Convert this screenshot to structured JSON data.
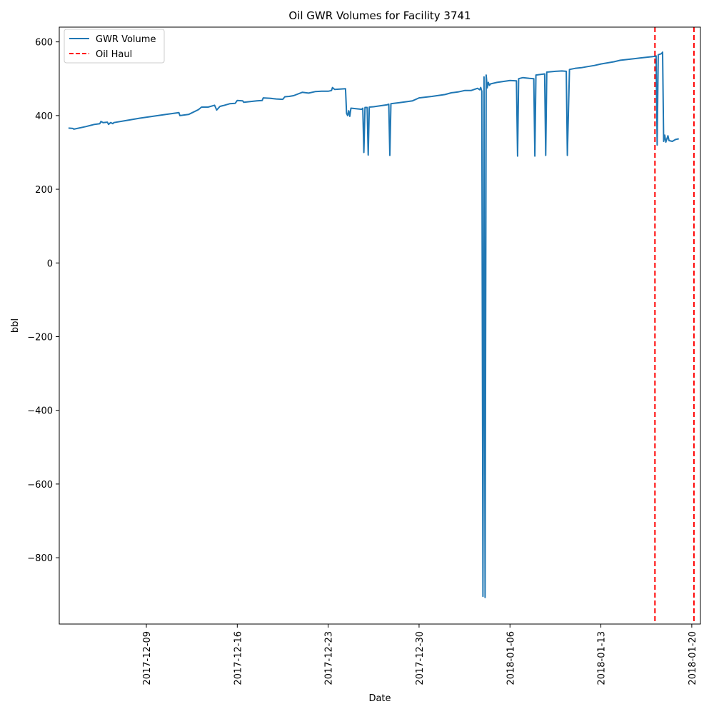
{
  "chart_data": {
    "type": "line",
    "title": "Oil GWR Volumes for Facility 3741",
    "xlabel": "Date",
    "ylabel": "bbl",
    "xlim": [
      "2017-12-02T07:00",
      "2018-01-20T16:00"
    ],
    "ylim": [
      -980,
      640
    ],
    "x_ticks": [
      "2017-12-09",
      "2017-12-16",
      "2017-12-23",
      "2017-12-30",
      "2018-01-06",
      "2018-01-13",
      "2018-01-20"
    ],
    "y_ticks": [
      600,
      400,
      200,
      0,
      -200,
      -400,
      -600,
      -800
    ],
    "y_tick_labels": [
      "600",
      "400",
      "200",
      "0",
      "−200",
      "−400",
      "−600",
      "−800"
    ],
    "grid": false,
    "legend_position": "upper-left",
    "series": [
      {
        "name": "GWR Volume",
        "color": "#1f77b4",
        "points": [
          [
            "2017-12-03T00:00",
            366
          ],
          [
            "2017-12-03T08:00",
            365
          ],
          [
            "2017-12-03T10:00",
            363
          ],
          [
            "2017-12-04T08:00",
            370
          ],
          [
            "2017-12-05T00:00",
            376
          ],
          [
            "2017-12-05T10:00",
            378
          ],
          [
            "2017-12-05T12:00",
            384
          ],
          [
            "2017-12-05T16:00",
            381
          ],
          [
            "2017-12-06T00:00",
            382
          ],
          [
            "2017-12-06T02:00",
            376
          ],
          [
            "2017-12-06T06:00",
            381
          ],
          [
            "2017-12-06T10:00",
            378
          ],
          [
            "2017-12-06T12:00",
            381
          ],
          [
            "2017-12-07T12:00",
            387
          ],
          [
            "2017-12-08T12:00",
            393
          ],
          [
            "2017-12-09T12:00",
            398
          ],
          [
            "2017-12-10T12:00",
            403
          ],
          [
            "2017-12-11T12:00",
            408
          ],
          [
            "2017-12-11T14:00",
            400
          ],
          [
            "2017-12-11T20:00",
            401
          ],
          [
            "2017-12-12T06:00",
            403
          ],
          [
            "2017-12-13T00:00",
            416
          ],
          [
            "2017-12-13T06:00",
            423
          ],
          [
            "2017-12-13T18:00",
            423
          ],
          [
            "2017-12-14T06:00",
            428
          ],
          [
            "2017-12-14T10:00",
            415
          ],
          [
            "2017-12-14T16:00",
            425
          ],
          [
            "2017-12-14T22:00",
            427
          ],
          [
            "2017-12-15T10:00",
            432
          ],
          [
            "2017-12-15T20:00",
            433
          ],
          [
            "2017-12-16T00:00",
            441
          ],
          [
            "2017-12-16T10:00",
            440
          ],
          [
            "2017-12-16T12:00",
            436
          ],
          [
            "2017-12-17T12:00",
            440
          ],
          [
            "2017-12-17T22:00",
            441
          ],
          [
            "2017-12-18T00:00",
            448
          ],
          [
            "2017-12-18T12:00",
            447
          ],
          [
            "2017-12-19T00:00",
            445
          ],
          [
            "2017-12-19T12:00",
            444
          ],
          [
            "2017-12-19T16:00",
            451
          ],
          [
            "2017-12-20T00:00",
            452
          ],
          [
            "2017-12-20T08:00",
            454
          ],
          [
            "2017-12-21T00:00",
            463
          ],
          [
            "2017-12-21T12:00",
            461
          ],
          [
            "2017-12-22T00:00",
            465
          ],
          [
            "2017-12-22T12:00",
            466
          ],
          [
            "2017-12-23T00:00",
            466
          ],
          [
            "2017-12-23T06:00",
            468
          ],
          [
            "2017-12-23T08:00",
            476
          ],
          [
            "2017-12-23T12:00",
            471
          ],
          [
            "2017-12-24T08:00",
            473
          ],
          [
            "2017-12-24T10:00",
            406
          ],
          [
            "2017-12-24T12:00",
            400
          ],
          [
            "2017-12-24T14:00",
            413
          ],
          [
            "2017-12-24T16:00",
            398
          ],
          [
            "2017-12-24T18:00",
            420
          ],
          [
            "2017-12-25T08:00",
            418
          ],
          [
            "2017-12-25T14:00",
            417
          ],
          [
            "2017-12-25T16:00",
            420
          ],
          [
            "2017-12-25T18:00",
            300
          ],
          [
            "2017-12-25T20:00",
            422
          ],
          [
            "2017-12-26T00:00",
            422
          ],
          [
            "2017-12-26T02:00",
            293
          ],
          [
            "2017-12-26T04:00",
            423
          ],
          [
            "2017-12-26T12:00",
            424
          ],
          [
            "2017-12-27T12:00",
            429
          ],
          [
            "2017-12-27T16:00",
            431
          ],
          [
            "2017-12-27T18:00",
            292
          ],
          [
            "2017-12-27T20:00",
            432
          ],
          [
            "2017-12-28T12:00",
            435
          ],
          [
            "2017-12-29T12:00",
            440
          ],
          [
            "2017-12-30T00:00",
            448
          ],
          [
            "2017-12-31T00:00",
            452
          ],
          [
            "2018-01-01T00:00",
            457
          ],
          [
            "2018-01-01T12:00",
            462
          ],
          [
            "2018-01-02T00:00",
            464
          ],
          [
            "2018-01-02T12:00",
            468
          ],
          [
            "2018-01-03T00:00",
            468
          ],
          [
            "2018-01-03T12:00",
            474
          ],
          [
            "2018-01-03T16:00",
            470
          ],
          [
            "2018-01-03T18:00",
            476
          ],
          [
            "2018-01-03T20:00",
            466
          ],
          [
            "2018-01-03T22:00",
            -905
          ],
          [
            "2018-01-04T00:00",
            505
          ],
          [
            "2018-01-04T02:00",
            -908
          ],
          [
            "2018-01-04T04:00",
            510
          ],
          [
            "2018-01-04T06:00",
            475
          ],
          [
            "2018-01-04T08:00",
            490
          ],
          [
            "2018-01-04T10:00",
            482
          ],
          [
            "2018-01-04T12:00",
            486
          ],
          [
            "2018-01-05T00:00",
            490
          ],
          [
            "2018-01-06T00:00",
            495
          ],
          [
            "2018-01-06T12:00",
            494
          ],
          [
            "2018-01-06T14:00",
            290
          ],
          [
            "2018-01-06T16:00",
            500
          ],
          [
            "2018-01-07T00:00",
            503
          ],
          [
            "2018-01-07T12:00",
            501
          ],
          [
            "2018-01-07T20:00",
            500
          ],
          [
            "2018-01-07T22:00",
            290
          ],
          [
            "2018-01-08T00:00",
            510
          ],
          [
            "2018-01-08T16:00",
            513
          ],
          [
            "2018-01-08T18:00",
            292
          ],
          [
            "2018-01-08T20:00",
            518
          ],
          [
            "2018-01-09T12:00",
            520
          ],
          [
            "2018-01-10T00:00",
            521
          ],
          [
            "2018-01-10T08:00",
            520
          ],
          [
            "2018-01-10T10:00",
            292
          ],
          [
            "2018-01-10T14:00",
            525
          ],
          [
            "2018-01-11T00:00",
            528
          ],
          [
            "2018-01-11T12:00",
            530
          ],
          [
            "2018-01-12T00:00",
            533
          ],
          [
            "2018-01-12T12:00",
            536
          ],
          [
            "2018-01-13T00:00",
            540
          ],
          [
            "2018-01-14T00:00",
            546
          ],
          [
            "2018-01-14T12:00",
            550
          ],
          [
            "2018-01-15T00:00",
            552
          ],
          [
            "2018-01-16T00:00",
            556
          ],
          [
            "2018-01-16T12:00",
            558
          ],
          [
            "2018-01-17T00:00",
            560
          ],
          [
            "2018-01-17T06:00",
            562
          ],
          [
            "2018-01-17T08:00",
            320
          ],
          [
            "2018-01-17T10:00",
            565
          ],
          [
            "2018-01-17T16:00",
            568
          ],
          [
            "2018-01-17T18:00",
            572
          ],
          [
            "2018-01-17T20:00",
            330
          ],
          [
            "2018-01-17T22:00",
            347
          ],
          [
            "2018-01-18T00:00",
            328
          ],
          [
            "2018-01-18T04:00",
            345
          ],
          [
            "2018-01-18T06:00",
            332
          ],
          [
            "2018-01-18T12:00",
            330
          ],
          [
            "2018-01-18T18:00",
            335
          ],
          [
            "2018-01-19T00:00",
            337
          ]
        ]
      }
    ],
    "vertical_lines": [
      {
        "name": "Oil Haul",
        "color": "#ff0000",
        "dates": [
          "2018-01-17T04:00",
          "2018-01-20T04:00"
        ]
      }
    ]
  }
}
